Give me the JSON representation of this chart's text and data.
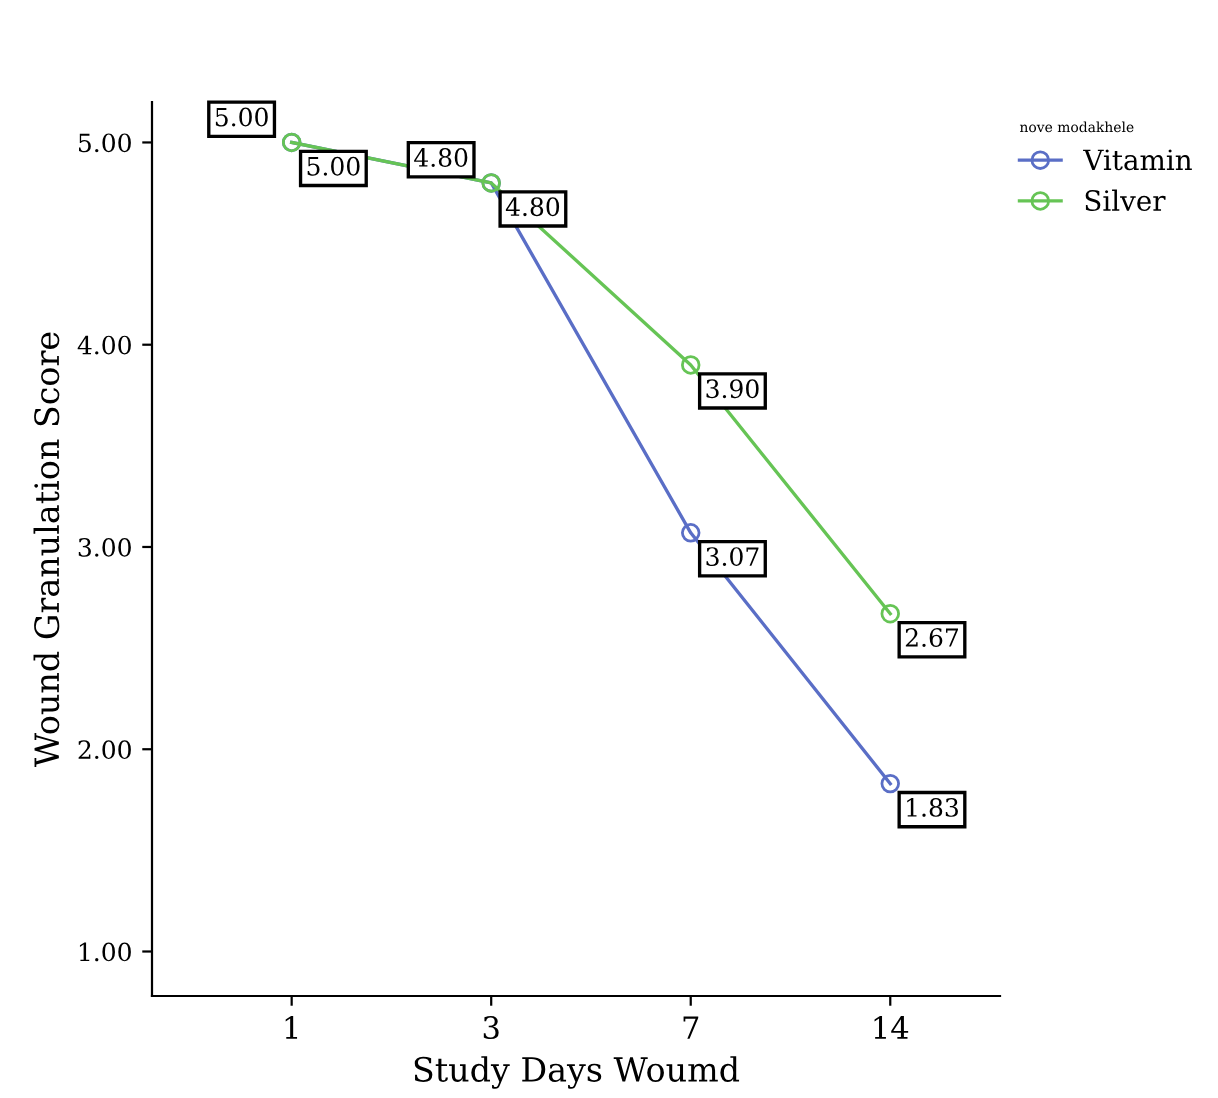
{
  "chart_data": {
    "type": "line",
    "xlabel": "Study Days Woumd",
    "ylabel": "Wound Granulation Score",
    "legend_title": "nove modakhele",
    "categories": [
      "1",
      "3",
      "7",
      "14"
    ],
    "series": [
      {
        "name": "Vitamin",
        "color": "#5a6ec6",
        "values": [
          5.0,
          4.8,
          3.07,
          1.83
        ],
        "value_labels": [
          "5.00",
          "4.80",
          "3.07",
          "1.83"
        ]
      },
      {
        "name": "Silver",
        "color": "#66c455",
        "values": [
          5.0,
          4.8,
          3.9,
          2.67
        ],
        "value_labels": [
          "5.00",
          "4.80",
          "3.90",
          "2.67"
        ]
      }
    ],
    "ylim": [
      0.78,
      5.2
    ],
    "yticks": [
      {
        "value": 1,
        "label": "1.00"
      },
      {
        "value": 2,
        "label": "2.00"
      },
      {
        "value": 3,
        "label": "3.00"
      },
      {
        "value": 4,
        "label": "4.00"
      },
      {
        "value": 5,
        "label": "5.00"
      }
    ],
    "grid": false,
    "legend": "top right",
    "marker": "circle",
    "line_style": "solid"
  }
}
